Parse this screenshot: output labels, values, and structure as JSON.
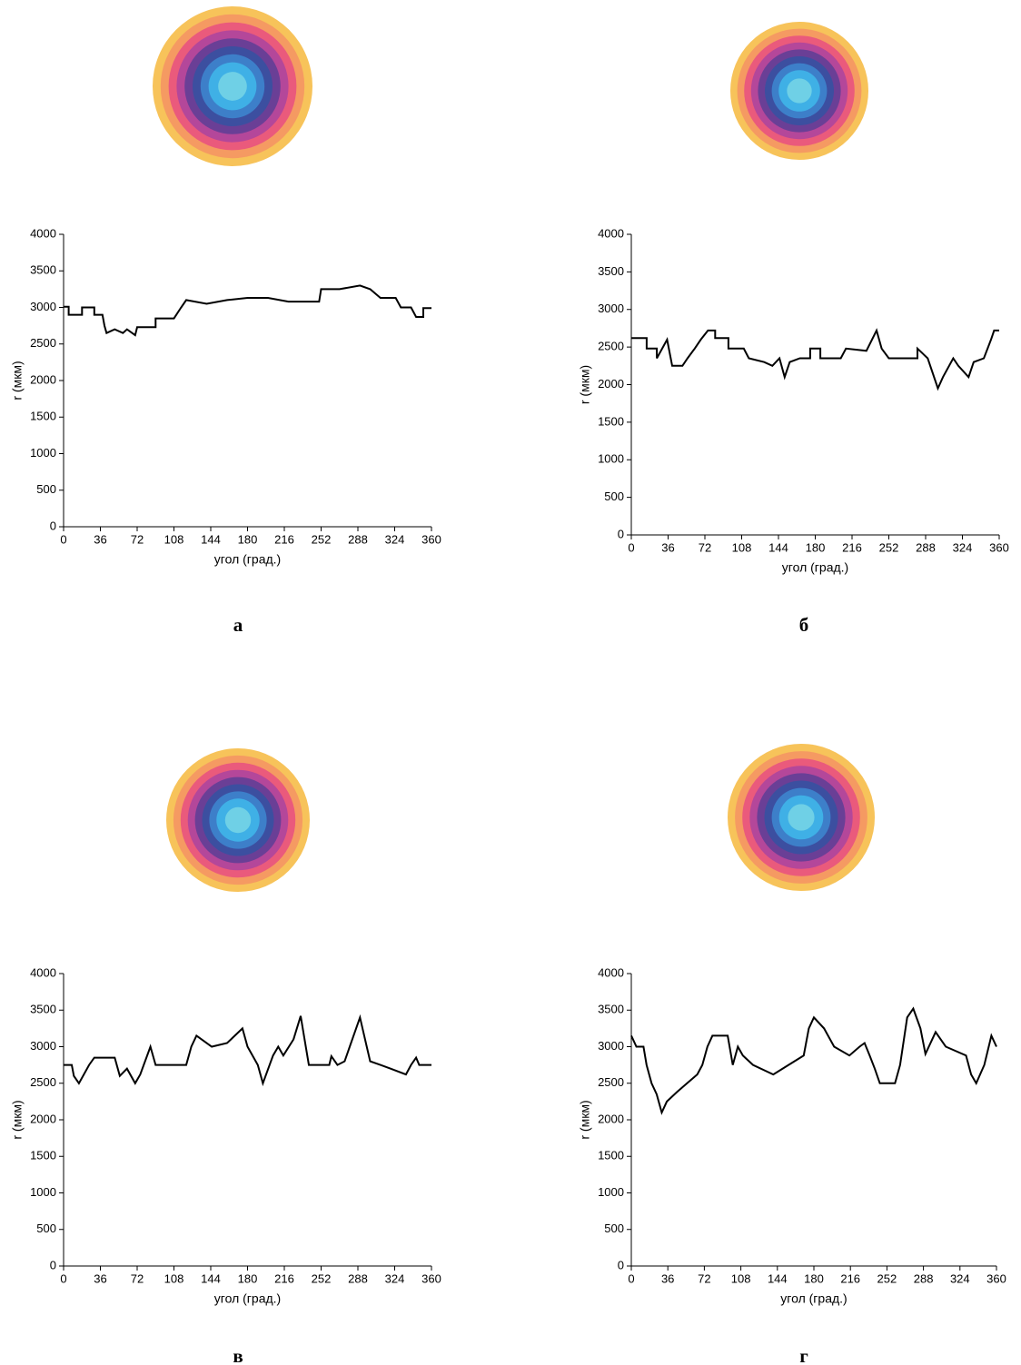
{
  "chart_data": [
    {
      "type": "line",
      "caption": "а",
      "xlabel": "угол (град.)",
      "ylabel": "r (мкм)",
      "color": "#000000",
      "xlim": [
        0,
        360
      ],
      "ylim": [
        0,
        4000
      ],
      "xticks": [
        0,
        36,
        72,
        108,
        144,
        180,
        216,
        252,
        288,
        324,
        360
      ],
      "yticks": [
        0,
        500,
        1000,
        1500,
        2000,
        2500,
        3000,
        3500,
        4000
      ],
      "x": [
        0,
        5,
        5,
        18,
        18,
        30,
        30,
        38,
        40,
        42,
        50,
        58,
        62,
        70,
        72,
        90,
        90,
        108,
        115,
        120,
        140,
        160,
        180,
        200,
        220,
        250,
        252,
        270,
        290,
        300,
        310,
        325,
        330,
        340,
        345,
        352,
        352,
        360
      ],
      "values": [
        3010,
        3010,
        2900,
        2900,
        3000,
        3000,
        2900,
        2900,
        2750,
        2650,
        2700,
        2650,
        2700,
        2620,
        2730,
        2730,
        2850,
        2850,
        3000,
        3100,
        3050,
        3100,
        3130,
        3130,
        3080,
        3080,
        3250,
        3250,
        3300,
        3250,
        3130,
        3130,
        3000,
        3000,
        2870,
        2870,
        2990,
        2990
      ]
    },
    {
      "type": "line",
      "caption": "б",
      "xlabel": "угол (град.)",
      "ylabel": "r (мкм)",
      "color": "#000000",
      "xlim": [
        0,
        360
      ],
      "ylim": [
        0,
        4000
      ],
      "xticks": [
        0,
        36,
        72,
        108,
        144,
        180,
        216,
        252,
        288,
        324,
        360
      ],
      "yticks": [
        0,
        500,
        1000,
        1500,
        2000,
        2500,
        3000,
        3500,
        4000
      ],
      "x": [
        0,
        15,
        15,
        25,
        25,
        35,
        40,
        50,
        55,
        62,
        68,
        75,
        82,
        82,
        95,
        95,
        110,
        115,
        130,
        138,
        145,
        150,
        155,
        165,
        175,
        175,
        185,
        185,
        205,
        210,
        230,
        240,
        245,
        252,
        280,
        280,
        290,
        300,
        305,
        315,
        320,
        330,
        335,
        345,
        352,
        355,
        360
      ],
      "values": [
        2620,
        2620,
        2480,
        2480,
        2350,
        2600,
        2250,
        2250,
        2350,
        2480,
        2600,
        2720,
        2720,
        2620,
        2620,
        2480,
        2480,
        2350,
        2300,
        2250,
        2350,
        2100,
        2300,
        2350,
        2350,
        2480,
        2480,
        2350,
        2350,
        2480,
        2450,
        2720,
        2480,
        2350,
        2350,
        2480,
        2350,
        1950,
        2100,
        2350,
        2250,
        2100,
        2300,
        2350,
        2600,
        2720,
        2720
      ]
    },
    {
      "type": "line",
      "caption": "в",
      "xlabel": "угол (град.)",
      "ylabel": "r (мкм)",
      "color": "#000000",
      "xlim": [
        0,
        360
      ],
      "ylim": [
        0,
        4000
      ],
      "xticks": [
        0,
        36,
        72,
        108,
        144,
        180,
        216,
        252,
        288,
        324,
        360
      ],
      "yticks": [
        0,
        500,
        1000,
        1500,
        2000,
        2500,
        3000,
        3500,
        4000
      ],
      "x": [
        0,
        8,
        10,
        15,
        25,
        30,
        50,
        55,
        62,
        70,
        75,
        85,
        90,
        120,
        125,
        130,
        145,
        160,
        175,
        180,
        190,
        195,
        205,
        210,
        215,
        225,
        232,
        240,
        260,
        262,
        268,
        275,
        280,
        290,
        295,
        300,
        310,
        320,
        335,
        340,
        345,
        348,
        360
      ],
      "values": [
        2750,
        2750,
        2600,
        2500,
        2750,
        2850,
        2850,
        2600,
        2700,
        2500,
        2620,
        3000,
        2750,
        2750,
        3000,
        3150,
        3000,
        3050,
        3250,
        3000,
        2750,
        2500,
        2880,
        3000,
        2880,
        3100,
        3420,
        2750,
        2750,
        2870,
        2750,
        2800,
        3000,
        3400,
        3100,
        2800,
        2750,
        2700,
        2620,
        2750,
        2850,
        2750,
        2750
      ]
    },
    {
      "type": "line",
      "caption": "г",
      "xlabel": "угол (град.)",
      "ylabel": "r (мкм)",
      "color": "#000000",
      "xlim": [
        0,
        360
      ],
      "ylim": [
        0,
        4000
      ],
      "xticks": [
        0,
        36,
        72,
        108,
        144,
        180,
        216,
        252,
        288,
        324,
        360
      ],
      "yticks": [
        0,
        500,
        1000,
        1500,
        2000,
        2500,
        3000,
        3500,
        4000
      ],
      "x": [
        0,
        5,
        12,
        15,
        20,
        25,
        30,
        35,
        45,
        55,
        65,
        70,
        75,
        80,
        95,
        100,
        105,
        110,
        120,
        140,
        155,
        170,
        175,
        180,
        190,
        200,
        215,
        225,
        230,
        235,
        240,
        245,
        260,
        265,
        272,
        278,
        285,
        290,
        300,
        310,
        330,
        335,
        340,
        348,
        355,
        360
      ],
      "values": [
        3150,
        3000,
        3000,
        2750,
        2500,
        2350,
        2100,
        2250,
        2380,
        2500,
        2620,
        2750,
        3000,
        3150,
        3150,
        2750,
        3000,
        2880,
        2750,
        2620,
        2750,
        2880,
        3250,
        3400,
        3250,
        3000,
        2880,
        3000,
        3050,
        2880,
        2700,
        2500,
        2500,
        2750,
        3400,
        3520,
        3250,
        2900,
        3200,
        3000,
        2880,
        2620,
        2500,
        2750,
        3150,
        3000
      ]
    }
  ]
}
